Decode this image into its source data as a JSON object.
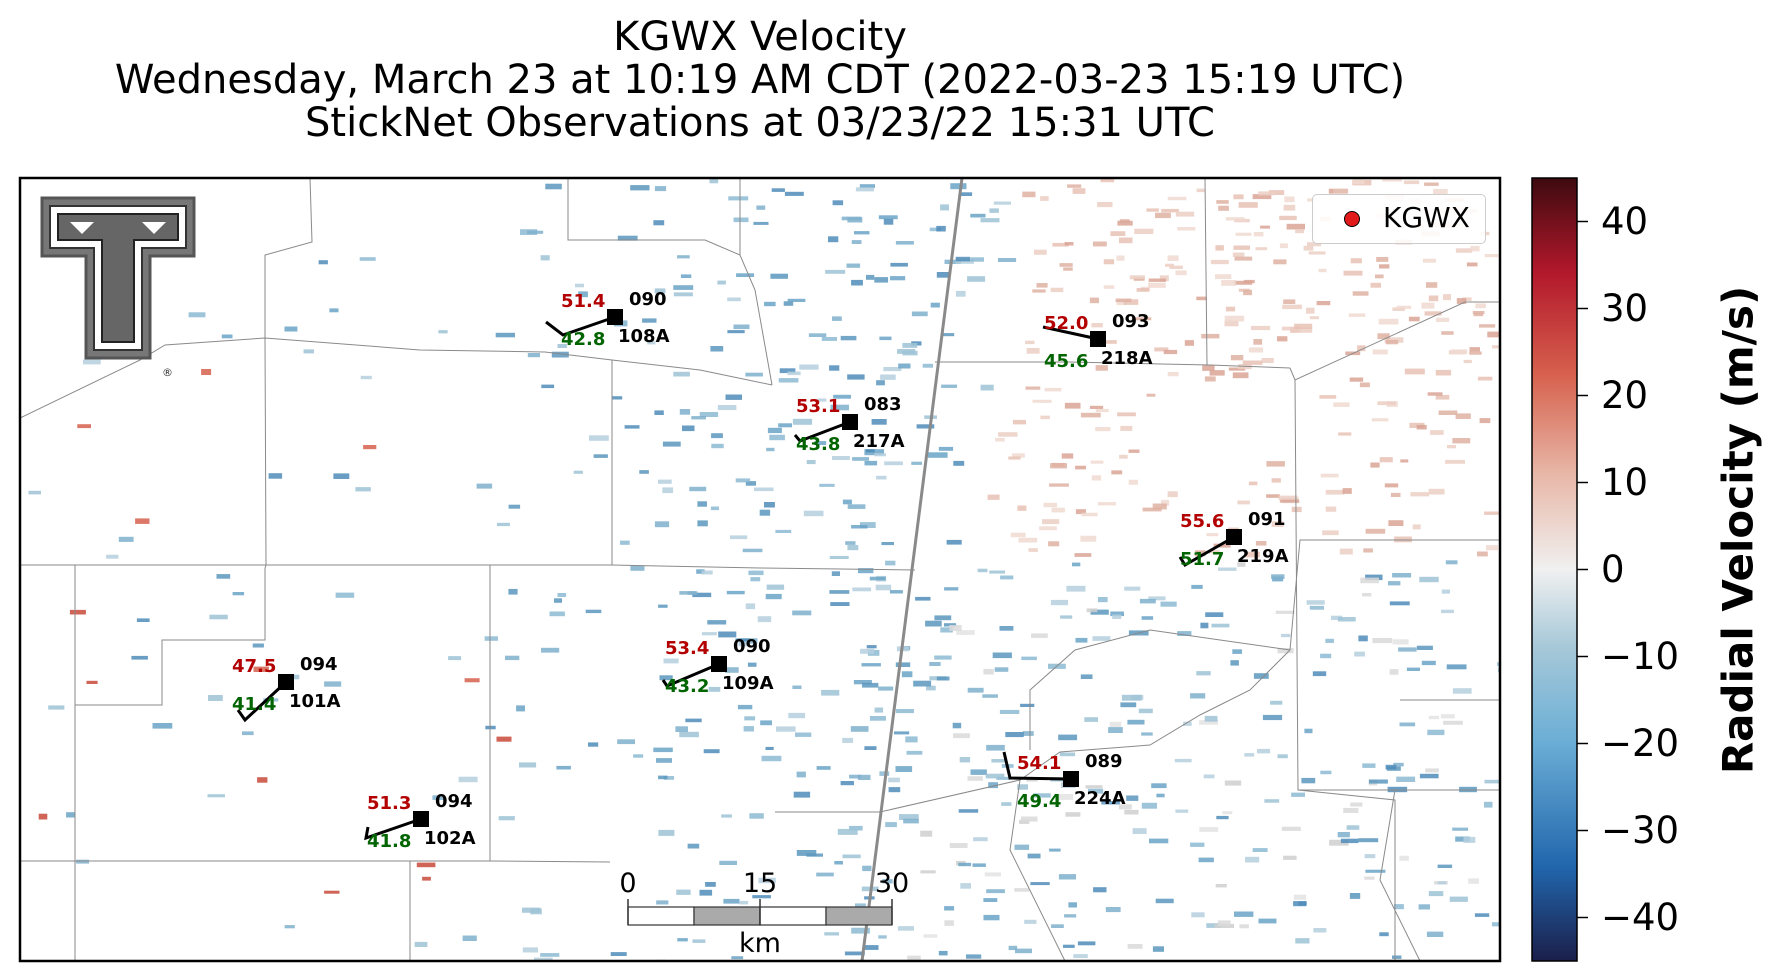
{
  "title": {
    "line1": "KGWX Velocity",
    "line2": "Wednesday, March 23 at 10:19 AM CDT (2022-03-23 15:19 UTC)",
    "line3": "StickNet Observations at 03/23/22 15:31 UTC"
  },
  "legend": {
    "label": "KGWX",
    "marker_color": "#e31a1c"
  },
  "colorbar": {
    "label": "Radial Velocity (m/s)",
    "ticks": [
      "40",
      "30",
      "20",
      "10",
      "0",
      "−10",
      "−20",
      "−30",
      "−40"
    ],
    "range": [
      -45,
      45
    ],
    "colors": [
      "#1b1f4a",
      "#2166ac",
      "#6baed6",
      "#a6c8d8",
      "#f0f0f0",
      "#e8b8a8",
      "#d6604d",
      "#b2182b",
      "#3d0a0f"
    ]
  },
  "scale_bar": {
    "ticks": [
      "0",
      "15",
      "30"
    ],
    "unit": "km"
  },
  "logo": {
    "name": "Texas Tech Double T",
    "mark": "®"
  },
  "stations": [
    {
      "id": "108A",
      "temp": "51.4",
      "dir": "090",
      "dew": "42.8"
    },
    {
      "id": "218A",
      "temp": "52.0",
      "dir": "093",
      "dew": "45.6"
    },
    {
      "id": "217A",
      "temp": "53.1",
      "dir": "083",
      "dew": "43.8"
    },
    {
      "id": "219A",
      "temp": "55.6",
      "dir": "091",
      "dew": "51.7"
    },
    {
      "id": "101A",
      "temp": "47.5",
      "dir": "094",
      "dew": "41.4"
    },
    {
      "id": "109A",
      "temp": "53.4",
      "dir": "090",
      "dew": "43.2"
    },
    {
      "id": "224A",
      "temp": "54.1",
      "dir": "089",
      "dew": "49.4"
    },
    {
      "id": "102A",
      "temp": "51.3",
      "dir": "094",
      "dew": "41.8"
    }
  ],
  "colors": {
    "temp": "#b30000",
    "dew": "#006400",
    "text": "#000000"
  }
}
